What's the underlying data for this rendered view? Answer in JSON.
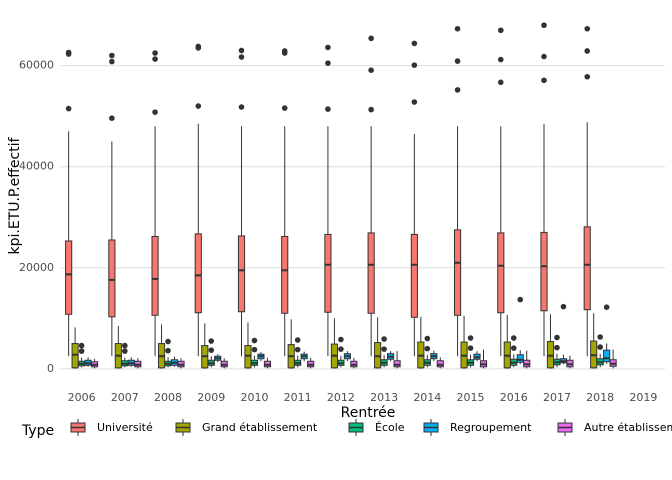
{
  "chart_data": {
    "type": "boxplot",
    "title": "",
    "xlabel": "Rentrée",
    "ylabel": "kpi.ETU.P.effectif",
    "ylim": [
      -3000,
      72000
    ],
    "yticks": [
      0,
      20000,
      40000,
      60000
    ],
    "ytick_labels": [
      "0",
      "20000",
      "40000",
      "60000"
    ],
    "grid": true,
    "categories": [
      "2006",
      "2007",
      "2008",
      "2009",
      "2010",
      "2011",
      "2012",
      "2013",
      "2014",
      "2015",
      "2016",
      "2017",
      "2018",
      "2019"
    ],
    "legend": {
      "title": "Type",
      "position": "bottom",
      "entries": [
        "Université",
        "Grand établissement",
        "École",
        "Regroupement",
        "Autre établissement"
      ]
    },
    "series": [
      {
        "name": "Université",
        "color": "#F8766D",
        "boxes": [
          {
            "year": "2006",
            "whisker_low": 2500,
            "q1": 10800,
            "median": 18700,
            "q3": 25300,
            "whisker_high": 47000,
            "outliers": [
              51500,
              62300,
              62600
            ]
          },
          {
            "year": "2007",
            "whisker_low": 2500,
            "q1": 10300,
            "median": 17600,
            "q3": 25500,
            "whisker_high": 45000,
            "outliers": [
              49600,
              60800,
              62000
            ]
          },
          {
            "year": "2008",
            "whisker_low": 2500,
            "q1": 10600,
            "median": 17800,
            "q3": 26200,
            "whisker_high": 48000,
            "outliers": [
              50800,
              61300,
              62500
            ]
          },
          {
            "year": "2009",
            "whisker_low": 2500,
            "q1": 11100,
            "median": 18500,
            "q3": 26700,
            "whisker_high": 48500,
            "outliers": [
              52000,
              63500,
              63800
            ]
          },
          {
            "year": "2010",
            "whisker_low": 2500,
            "q1": 11300,
            "median": 19500,
            "q3": 26300,
            "whisker_high": 48000,
            "outliers": [
              51800,
              61700,
              63000
            ]
          },
          {
            "year": "2011",
            "whisker_low": 2500,
            "q1": 11000,
            "median": 19500,
            "q3": 26200,
            "whisker_high": 48000,
            "outliers": [
              51600,
              62500,
              62900
            ]
          },
          {
            "year": "2012",
            "whisker_low": 2500,
            "q1": 11200,
            "median": 20600,
            "q3": 26600,
            "whisker_high": 48000,
            "outliers": [
              51400,
              60500,
              63600
            ]
          },
          {
            "year": "2013",
            "whisker_low": 2500,
            "q1": 11000,
            "median": 20600,
            "q3": 26900,
            "whisker_high": 48000,
            "outliers": [
              51300,
              59100,
              65400
            ]
          },
          {
            "year": "2014",
            "whisker_low": 2500,
            "q1": 10200,
            "median": 20600,
            "q3": 26600,
            "whisker_high": 46500,
            "outliers": [
              52800,
              60100,
              64400
            ]
          },
          {
            "year": "2015",
            "whisker_low": 2500,
            "q1": 10600,
            "median": 21000,
            "q3": 27500,
            "whisker_high": 48000,
            "outliers": [
              55200,
              60900,
              67300
            ]
          },
          {
            "year": "2016",
            "whisker_low": 2500,
            "q1": 11100,
            "median": 20400,
            "q3": 26900,
            "whisker_high": 48000,
            "outliers": [
              56700,
              61200,
              67000
            ]
          },
          {
            "year": "2017",
            "whisker_low": 2500,
            "q1": 11500,
            "median": 20300,
            "q3": 27000,
            "whisker_high": 48500,
            "outliers": [
              57100,
              61800,
              68000
            ]
          },
          {
            "year": "2018",
            "whisker_low": 2500,
            "q1": 11700,
            "median": 20600,
            "q3": 28100,
            "whisker_high": 48800,
            "outliers": [
              57800,
              62900,
              67300
            ]
          }
        ]
      },
      {
        "name": "Grand établissement",
        "color": "#A3A500",
        "boxes": [
          {
            "year": "2006",
            "whisker_low": 0,
            "q1": 200,
            "median": 2800,
            "q3": 5000,
            "whisker_high": 8200,
            "outliers": []
          },
          {
            "year": "2007",
            "whisker_low": 0,
            "q1": 200,
            "median": 2600,
            "q3": 5000,
            "whisker_high": 8500,
            "outliers": []
          },
          {
            "year": "2008",
            "whisker_low": 0,
            "q1": 200,
            "median": 2500,
            "q3": 5000,
            "whisker_high": 8800,
            "outliers": []
          },
          {
            "year": "2009",
            "whisker_low": 0,
            "q1": 200,
            "median": 2500,
            "q3": 4600,
            "whisker_high": 9000,
            "outliers": []
          },
          {
            "year": "2010",
            "whisker_low": 0,
            "q1": 200,
            "median": 2600,
            "q3": 4600,
            "whisker_high": 9200,
            "outliers": []
          },
          {
            "year": "2011",
            "whisker_low": 0,
            "q1": 200,
            "median": 2500,
            "q3": 4800,
            "whisker_high": 9800,
            "outliers": []
          },
          {
            "year": "2012",
            "whisker_low": 0,
            "q1": 200,
            "median": 2600,
            "q3": 4900,
            "whisker_high": 10000,
            "outliers": []
          },
          {
            "year": "2013",
            "whisker_low": 0,
            "q1": 200,
            "median": 2500,
            "q3": 5200,
            "whisker_high": 10200,
            "outliers": []
          },
          {
            "year": "2014",
            "whisker_low": 0,
            "q1": 200,
            "median": 2600,
            "q3": 5300,
            "whisker_high": 10300,
            "outliers": []
          },
          {
            "year": "2015",
            "whisker_low": 0,
            "q1": 200,
            "median": 2600,
            "q3": 5300,
            "whisker_high": 10500,
            "outliers": []
          },
          {
            "year": "2016",
            "whisker_low": 0,
            "q1": 200,
            "median": 2600,
            "q3": 5300,
            "whisker_high": 10700,
            "outliers": []
          },
          {
            "year": "2017",
            "whisker_low": 0,
            "q1": 200,
            "median": 2600,
            "q3": 5400,
            "whisker_high": 10800,
            "outliers": []
          },
          {
            "year": "2018",
            "whisker_low": 0,
            "q1": 200,
            "median": 2700,
            "q3": 5500,
            "whisker_high": 11000,
            "outliers": []
          }
        ]
      },
      {
        "name": "École",
        "color": "#00BF7D",
        "boxes": [
          {
            "year": "2006",
            "whisker_low": 300,
            "q1": 600,
            "median": 1000,
            "q3": 1500,
            "whisker_high": 2200,
            "outliers": [
              3500,
              4600
            ]
          },
          {
            "year": "2007",
            "whisker_low": 300,
            "q1": 600,
            "median": 1000,
            "q3": 1600,
            "whisker_high": 2200,
            "outliers": [
              3500,
              4600
            ]
          },
          {
            "year": "2008",
            "whisker_low": 300,
            "q1": 600,
            "median": 1000,
            "q3": 1500,
            "whisker_high": 2300,
            "outliers": [
              3600,
              5400
            ]
          },
          {
            "year": "2009",
            "whisker_low": 300,
            "q1": 700,
            "median": 1100,
            "q3": 1700,
            "whisker_high": 2500,
            "outliers": [
              3700,
              5500
            ]
          },
          {
            "year": "2010",
            "whisker_low": 300,
            "q1": 700,
            "median": 1100,
            "q3": 1700,
            "whisker_high": 2600,
            "outliers": [
              3800,
              5600
            ]
          },
          {
            "year": "2011",
            "whisker_low": 300,
            "q1": 700,
            "median": 1100,
            "q3": 1700,
            "whisker_high": 2600,
            "outliers": [
              3800,
              5700
            ]
          },
          {
            "year": "2012",
            "whisker_low": 300,
            "q1": 700,
            "median": 1100,
            "q3": 1700,
            "whisker_high": 2600,
            "outliers": [
              3900,
              5800
            ]
          },
          {
            "year": "2013",
            "whisker_low": 300,
            "q1": 700,
            "median": 1200,
            "q3": 1800,
            "whisker_high": 2700,
            "outliers": [
              3900,
              5900
            ]
          },
          {
            "year": "2014",
            "whisker_low": 300,
            "q1": 700,
            "median": 1200,
            "q3": 1800,
            "whisker_high": 2800,
            "outliers": [
              4000,
              6000
            ]
          },
          {
            "year": "2015",
            "whisker_low": 300,
            "q1": 700,
            "median": 1200,
            "q3": 1800,
            "whisker_high": 2800,
            "outliers": [
              4100,
              6100
            ]
          },
          {
            "year": "2016",
            "whisker_low": 300,
            "q1": 700,
            "median": 1200,
            "q3": 1900,
            "whisker_high": 2900,
            "outliers": [
              4100,
              6100
            ]
          },
          {
            "year": "2017",
            "whisker_low": 300,
            "q1": 800,
            "median": 1300,
            "q3": 1900,
            "whisker_high": 3000,
            "outliers": [
              4200,
              6200
            ]
          },
          {
            "year": "2018",
            "whisker_low": 300,
            "q1": 800,
            "median": 1300,
            "q3": 2000,
            "whisker_high": 3000,
            "outliers": [
              4300,
              6300
            ]
          }
        ]
      },
      {
        "name": "Regroupement",
        "color": "#00B0F6",
        "boxes": [
          {
            "year": "2006",
            "whisker_low": 400,
            "q1": 700,
            "median": 1100,
            "q3": 1700,
            "whisker_high": 2300,
            "outliers": []
          },
          {
            "year": "2007",
            "whisker_low": 400,
            "q1": 700,
            "median": 1100,
            "q3": 1700,
            "whisker_high": 2300,
            "outliers": []
          },
          {
            "year": "2008",
            "whisker_low": 400,
            "q1": 700,
            "median": 1200,
            "q3": 1800,
            "whisker_high": 2400,
            "outliers": []
          },
          {
            "year": "2009",
            "whisker_low": 1300,
            "q1": 1700,
            "median": 2100,
            "q3": 2500,
            "whisker_high": 2900,
            "outliers": []
          },
          {
            "year": "2010",
            "whisker_low": 1500,
            "q1": 2000,
            "median": 2500,
            "q3": 2900,
            "whisker_high": 3300,
            "outliers": []
          },
          {
            "year": "2011",
            "whisker_low": 1500,
            "q1": 2000,
            "median": 2500,
            "q3": 2900,
            "whisker_high": 3400,
            "outliers": []
          },
          {
            "year": "2012",
            "whisker_low": 1500,
            "q1": 2000,
            "median": 2500,
            "q3": 3000,
            "whisker_high": 3500,
            "outliers": []
          },
          {
            "year": "2013",
            "whisker_low": 1500,
            "q1": 1900,
            "median": 2400,
            "q3": 3000,
            "whisker_high": 3500,
            "outliers": []
          },
          {
            "year": "2014",
            "whisker_low": 1500,
            "q1": 2000,
            "median": 2500,
            "q3": 3000,
            "whisker_high": 3600,
            "outliers": []
          },
          {
            "year": "2015",
            "whisker_low": 1500,
            "q1": 1900,
            "median": 2300,
            "q3": 2900,
            "whisker_high": 3500,
            "outliers": []
          },
          {
            "year": "2016",
            "whisker_low": 900,
            "q1": 1300,
            "median": 1800,
            "q3": 2800,
            "whisker_high": 3700,
            "outliers": [
              13700
            ]
          },
          {
            "year": "2017",
            "whisker_low": 900,
            "q1": 1200,
            "median": 1500,
            "q3": 2000,
            "whisker_high": 2800,
            "outliers": [
              12300
            ]
          },
          {
            "year": "2018",
            "whisker_low": 1000,
            "q1": 1400,
            "median": 2100,
            "q3": 3700,
            "whisker_high": 5000,
            "outliers": [
              12200
            ]
          }
        ]
      },
      {
        "name": "Autre établissement",
        "color": "#E76BF3",
        "boxes": [
          {
            "year": "2006",
            "whisker_low": 100,
            "q1": 400,
            "median": 800,
            "q3": 1400,
            "whisker_high": 2000,
            "outliers": []
          },
          {
            "year": "2007",
            "whisker_low": 100,
            "q1": 400,
            "median": 800,
            "q3": 1500,
            "whisker_high": 2100,
            "outliers": []
          },
          {
            "year": "2008",
            "whisker_low": 100,
            "q1": 400,
            "median": 800,
            "q3": 1500,
            "whisker_high": 2100,
            "outliers": []
          },
          {
            "year": "2009",
            "whisker_low": 100,
            "q1": 400,
            "median": 800,
            "q3": 1500,
            "whisker_high": 2100,
            "outliers": []
          },
          {
            "year": "2010",
            "whisker_low": 100,
            "q1": 400,
            "median": 800,
            "q3": 1500,
            "whisker_high": 2200,
            "outliers": []
          },
          {
            "year": "2011",
            "whisker_low": 100,
            "q1": 400,
            "median": 800,
            "q3": 1500,
            "whisker_high": 2200,
            "outliers": []
          },
          {
            "year": "2012",
            "whisker_low": 100,
            "q1": 400,
            "median": 800,
            "q3": 1500,
            "whisker_high": 2200,
            "outliers": []
          },
          {
            "year": "2013",
            "whisker_low": 100,
            "q1": 400,
            "median": 800,
            "q3": 1600,
            "whisker_high": 3500,
            "outliers": []
          },
          {
            "year": "2014",
            "whisker_low": 100,
            "q1": 400,
            "median": 800,
            "q3": 1600,
            "whisker_high": 2300,
            "outliers": []
          },
          {
            "year": "2015",
            "whisker_low": 100,
            "q1": 400,
            "median": 900,
            "q3": 1600,
            "whisker_high": 3800,
            "outliers": []
          },
          {
            "year": "2016",
            "whisker_low": 100,
            "q1": 400,
            "median": 900,
            "q3": 1700,
            "whisker_high": 3600,
            "outliers": []
          },
          {
            "year": "2017",
            "whisker_low": 100,
            "q1": 400,
            "median": 900,
            "q3": 1700,
            "whisker_high": 2600,
            "outliers": []
          },
          {
            "year": "2018",
            "whisker_low": 100,
            "q1": 500,
            "median": 1000,
            "q3": 1800,
            "whisker_high": 3800,
            "outliers": []
          }
        ]
      }
    ]
  }
}
